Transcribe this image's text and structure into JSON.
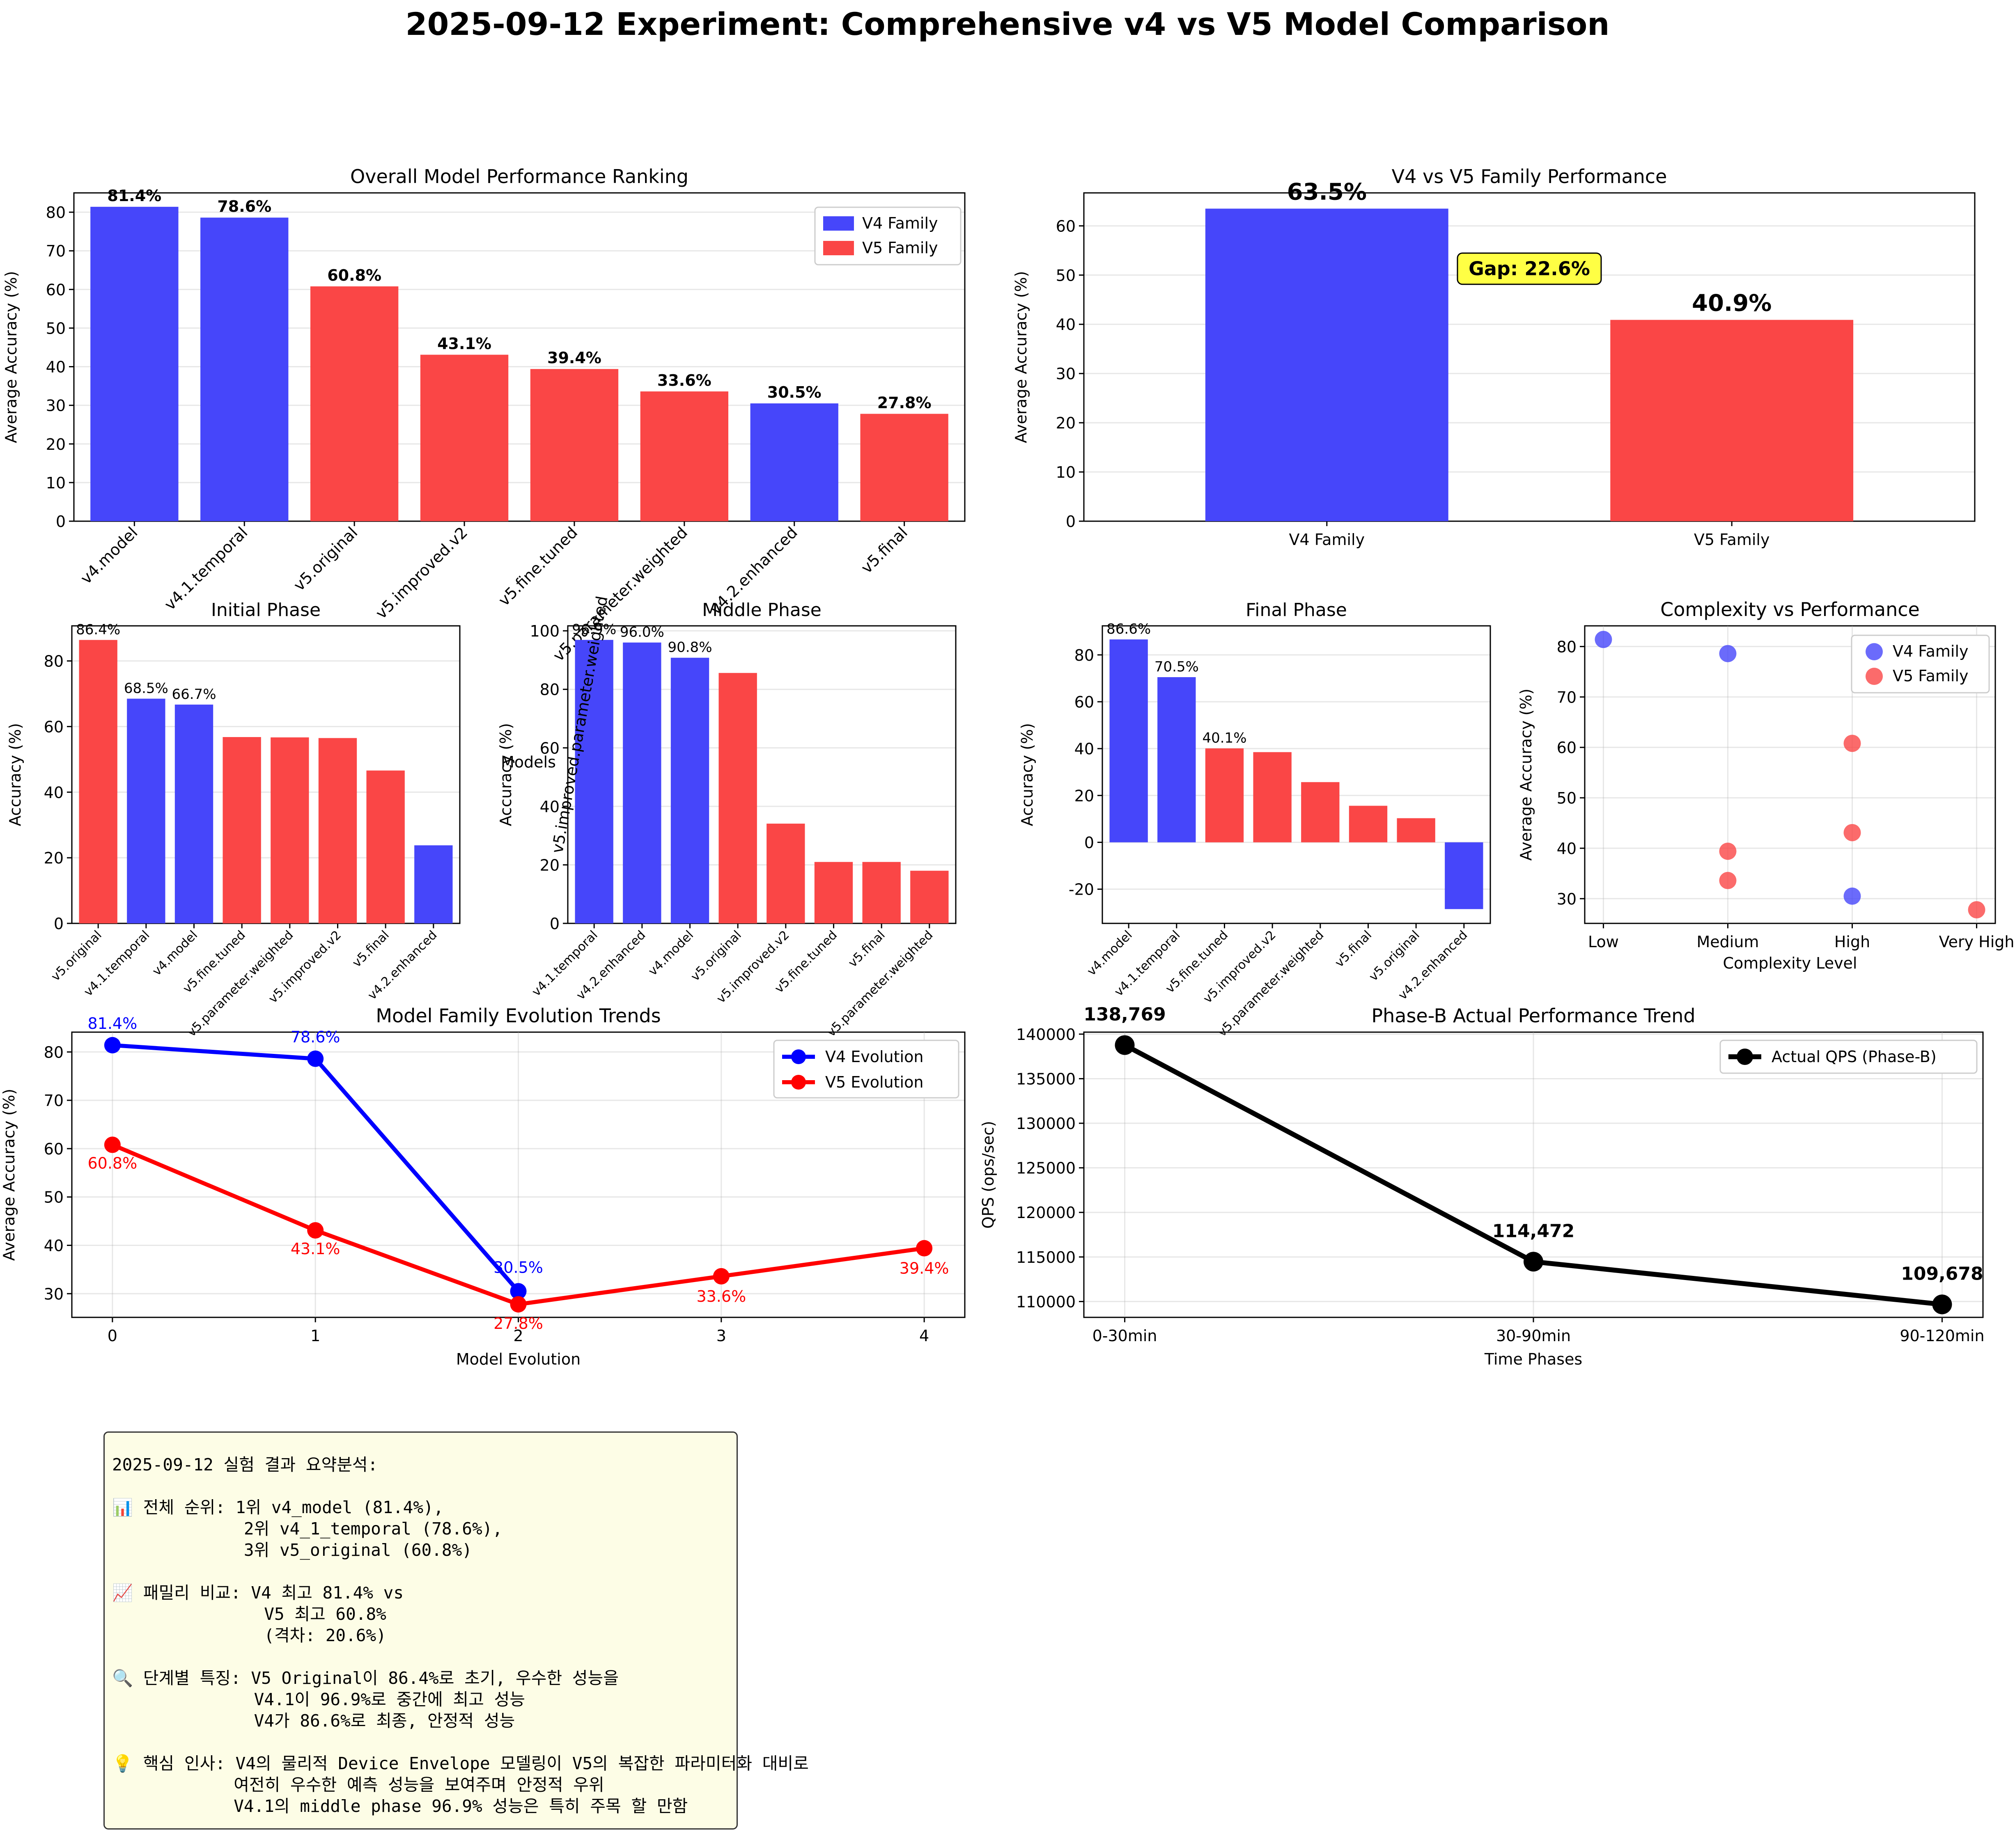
{
  "title": "2025-09-12 Experiment: Comprehensive v4 vs V5 Model Comparison",
  "colors": {
    "v4": "#4646fa",
    "v5": "#fa4646",
    "v4_line": "#0000ff",
    "v5_line": "#ff0000",
    "qps_line": "#000000",
    "gap_box": "#ffff44",
    "summary_bg": "#fdfde6"
  },
  "chart_data": [
    {
      "id": "ranking",
      "type": "bar",
      "title": "Overall Model Performance Ranking",
      "ylabel": "Average Accuracy (%)",
      "xlabel": "",
      "ylim": [
        0,
        85
      ],
      "yticks": [
        0,
        10,
        20,
        30,
        40,
        50,
        60,
        70,
        80
      ],
      "categories": [
        "v4.model",
        "v4.1.temporal",
        "v5.original",
        "v5.improved.v2",
        "v5.fine.tuned",
        "v5.parameter.weighted",
        "v4.2.enhanced",
        "v5.final"
      ],
      "values": [
        81.4,
        78.6,
        60.8,
        43.1,
        39.4,
        33.6,
        30.5,
        27.8
      ],
      "families": [
        "v4",
        "v4",
        "v5",
        "v5",
        "v5",
        "v5",
        "v4",
        "v5"
      ],
      "value_labels": [
        "81.4%",
        "78.6%",
        "60.8%",
        "43.1%",
        "39.4%",
        "33.6%",
        "30.5%",
        "27.8%"
      ],
      "legend": [
        "V4 Family",
        "V5 Family"
      ],
      "legend_position": "upper right"
    },
    {
      "id": "family",
      "type": "bar",
      "title": "V4 vs V5 Family Performance",
      "ylabel": "Average Accuracy (%)",
      "xlabel": "",
      "ylim": [
        0,
        66.7
      ],
      "yticks": [
        0,
        10,
        20,
        30,
        40,
        50,
        60
      ],
      "categories": [
        "V4 Family",
        "V5 Family"
      ],
      "values": [
        63.5,
        40.9
      ],
      "families": [
        "v4",
        "v5"
      ],
      "value_labels": [
        "63.5%",
        "40.9%"
      ],
      "annotation": "Gap: 22.6%",
      "annotation_at": {
        "x": 0.5,
        "y": 51.3
      }
    },
    {
      "id": "initial",
      "type": "bar",
      "title": "Initial Phase",
      "ylabel": "Accuracy (%)",
      "xlabel": "",
      "ylim": [
        0,
        90.7
      ],
      "yticks": [
        0,
        20,
        40,
        60,
        80
      ],
      "categories": [
        "v5.original",
        "v4.1.temporal",
        "v4.model",
        "v5.fine.tuned",
        "v5.parameter.weighted",
        "v5.improved.v2",
        "v5.final",
        "v4.2.enhanced"
      ],
      "values": [
        86.4,
        68.5,
        66.7,
        56.8,
        56.7,
        56.5,
        46.6,
        23.8
      ],
      "families": [
        "v5",
        "v4",
        "v4",
        "v5",
        "v5",
        "v5",
        "v5",
        "v4"
      ],
      "value_labels": [
        "86.4%",
        "68.5%",
        "66.7%",
        "",
        "",
        "",
        "",
        ""
      ]
    },
    {
      "id": "middle",
      "type": "bar",
      "title": "Middle Phase",
      "ylabel": "Accuracy (%)",
      "xlabel": "Models",
      "ylim": [
        0,
        101.7
      ],
      "yticks": [
        0,
        20,
        40,
        60,
        80,
        100
      ],
      "categories": [
        "v4.1.temporal",
        "v4.2.enhanced",
        "v4.model",
        "v5.original",
        "v5.improved.v2",
        "v5.fine.tuned",
        "v5.final",
        "v5.parameter.weighted"
      ],
      "values": [
        96.9,
        96.0,
        90.8,
        85.6,
        34.1,
        21.0,
        21.0,
        18.0
      ],
      "families": [
        "v4",
        "v4",
        "v4",
        "v5",
        "v5",
        "v5",
        "v5",
        "v5"
      ],
      "value_labels": [
        "96.9%",
        "96.0%",
        "90.8%",
        "",
        "",
        "",
        "",
        ""
      ],
      "overlap_label": "v5.improved.parameter.weighted"
    },
    {
      "id": "final",
      "type": "bar",
      "title": "Final Phase",
      "ylabel": "Accuracy (%)",
      "xlabel": "",
      "ylim": [
        -34.6,
        92.4
      ],
      "yticks": [
        -20,
        0,
        20,
        40,
        60,
        80
      ],
      "categories": [
        "v4.model",
        "v4.1.temporal",
        "v5.fine.tuned",
        "v5.improved.v2",
        "v5.parameter.weighted",
        "v5.final",
        "v5.original",
        "v4.2.enhanced"
      ],
      "values": [
        86.6,
        70.5,
        40.1,
        38.5,
        25.7,
        15.6,
        10.3,
        -28.5
      ],
      "families": [
        "v4",
        "v4",
        "v5",
        "v5",
        "v5",
        "v5",
        "v5",
        "v4"
      ],
      "value_labels": [
        "86.6%",
        "70.5%",
        "40.1%",
        "",
        "",
        "",
        "",
        ""
      ]
    },
    {
      "id": "complexity",
      "type": "scatter",
      "title": "Complexity vs Performance",
      "xlabel": "Complexity Level",
      "ylabel": "Average Accuracy (%)",
      "xticks": [
        "Low",
        "Medium",
        "High",
        "Very High"
      ],
      "ylim": [
        25.1,
        84.1
      ],
      "yticks": [
        30,
        40,
        50,
        60,
        70,
        80
      ],
      "series": [
        {
          "name": "V4 Family",
          "family": "v4",
          "points": [
            [
              0,
              81.4
            ],
            [
              1,
              78.6
            ],
            [
              2,
              30.5
            ]
          ]
        },
        {
          "name": "V5 Family",
          "family": "v5",
          "points": [
            [
              2,
              60.8
            ],
            [
              2,
              43.1
            ],
            [
              1,
              39.4
            ],
            [
              1,
              33.6
            ],
            [
              3,
              27.8
            ]
          ]
        }
      ],
      "legend_position": "upper right"
    },
    {
      "id": "evolution",
      "type": "line",
      "title": "Model Family Evolution Trends",
      "xlabel": "Model Evolution",
      "ylabel": "Average Accuracy (%)",
      "xlim": [
        -0.2,
        4.2
      ],
      "xticks": [
        0,
        1,
        2,
        3,
        4
      ],
      "ylim": [
        25.1,
        84.1
      ],
      "yticks": [
        30,
        40,
        50,
        60,
        70,
        80
      ],
      "series": [
        {
          "name": "V4 Evolution",
          "family": "v4",
          "x": [
            0,
            1,
            2
          ],
          "values": [
            81.4,
            78.6,
            30.5
          ],
          "labels": [
            "81.4%",
            "78.6%",
            "30.5%"
          ]
        },
        {
          "name": "V5 Evolution",
          "family": "v5",
          "x": [
            0,
            1,
            2,
            3,
            4
          ],
          "values": [
            60.8,
            43.1,
            27.8,
            33.6,
            39.4
          ],
          "labels": [
            "60.8%",
            "43.1%",
            "27.8%",
            "33.6%",
            "39.4%"
          ]
        }
      ],
      "legend_position": "upper right"
    },
    {
      "id": "qps",
      "type": "line",
      "title": "Phase-B Actual Performance Trend",
      "xlabel": "Time Phases",
      "ylabel": "QPS (ops/sec)",
      "categories": [
        "0-30min",
        "30-90min",
        "90-120min"
      ],
      "ylim": [
        108224,
        140223
      ],
      "yticks": [
        110000,
        115000,
        120000,
        125000,
        130000,
        135000,
        140000
      ],
      "series": [
        {
          "name": "Actual QPS (Phase-B)",
          "values": [
            138769,
            114472,
            109678
          ],
          "labels": [
            "138,769",
            "114,472",
            "109,678"
          ]
        }
      ],
      "legend_position": "upper right"
    }
  ],
  "summary": {
    "lines": [
      "2025-09-12 실험 결과 요약분석:",
      "",
      "📊 전체 순위: 1위 v4_model (81.4%),",
      "             2위 v4_1_temporal (78.6%),",
      "             3위 v5_original (60.8%)",
      "",
      "📈 패밀리 비교: V4 최고 81.4% vs",
      "               V5 최고 60.8%",
      "               (격차: 20.6%)",
      "",
      "🔍 단계별 특징: V5 Original이 86.4%로 초기, 우수한 성능을",
      "              V4.1이 96.9%로 중간에 최고 성능",
      "              V4가 86.6%로 최종, 안정적 성능",
      "",
      "💡 핵심 인사: V4의 물리적 Device Envelope 모델링이 V5의 복잡한 파라미터화 대비로",
      "            여전히 우수한 예측 성능을 보여주며 안정적 우위",
      "            V4.1의 middle phase 96.9% 성능은 특히 주목 할 만함"
    ]
  }
}
